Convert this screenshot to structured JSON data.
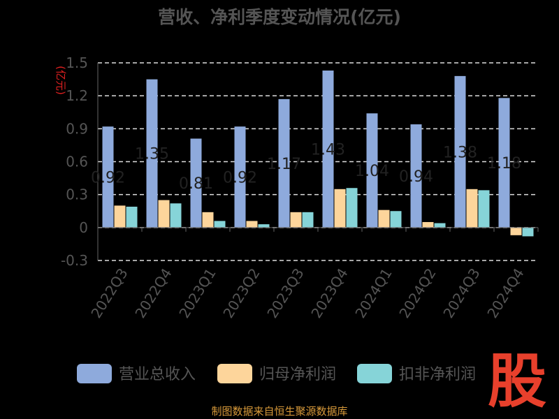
{
  "chart_data": {
    "type": "bar",
    "title": "营收、净利季度变动情况(亿元)",
    "ylabel": "(亿元)",
    "categories": [
      "2022Q3",
      "2022Q4",
      "2023Q1",
      "2023Q2",
      "2023Q3",
      "2023Q4",
      "2024Q1",
      "2024Q2",
      "2024Q3",
      "2024Q4"
    ],
    "series": [
      {
        "name": "营业总收入",
        "color": "#8eaadc",
        "values": [
          0.92,
          1.35,
          0.81,
          0.92,
          1.17,
          1.43,
          1.04,
          0.94,
          1.38,
          1.18
        ],
        "labels": [
          "0.92",
          "1.35",
          "0.81",
          "0.92",
          "1.17",
          "1.43",
          "1.04",
          "0.94",
          "1.38",
          "1.18"
        ]
      },
      {
        "name": "归母净利润",
        "color": "#fdd59b",
        "values": [
          0.2,
          0.25,
          0.14,
          0.06,
          0.14,
          0.35,
          0.16,
          0.05,
          0.35,
          -0.07
        ]
      },
      {
        "name": "扣非净利润",
        "color": "#86d4d8",
        "values": [
          0.19,
          0.22,
          0.06,
          0.03,
          0.14,
          0.36,
          0.15,
          0.04,
          0.34,
          -0.08
        ]
      }
    ],
    "yticks": [
      "-0.3",
      "0",
      "0.3",
      "0.6",
      "0.9",
      "1.2",
      "1.5"
    ],
    "ylim": [
      -0.3,
      1.5
    ],
    "grid": true,
    "legend_position": "bottom"
  },
  "footer": "制图数据来自恒生聚源数据库",
  "watermark": "股",
  "colors": {
    "background": "#000000",
    "title": "#555555",
    "axis_text": "#555555",
    "ylabel": "#e02020",
    "footer": "#d89a3a",
    "watermark": "#e8402c"
  }
}
